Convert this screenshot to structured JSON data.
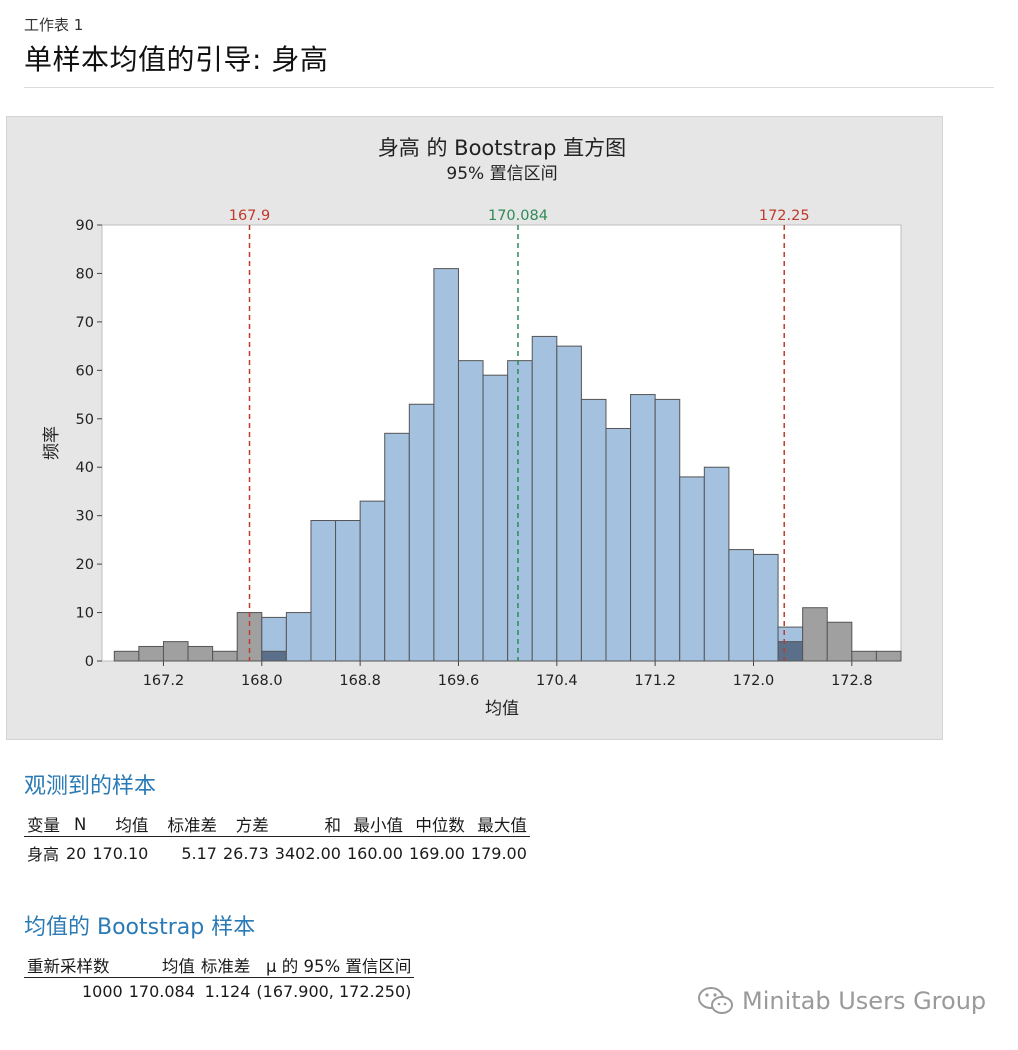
{
  "sheet_label": "工作表 1",
  "page_title": "单样本均值的引导: 身高",
  "chart_data": {
    "type": "bar",
    "title": "身高 的 Bootstrap 直方图",
    "subtitle": "95% 置信区间",
    "xlabel": "均值",
    "ylabel": "频率",
    "xlim": [
      166.7,
      173.2
    ],
    "ylim": [
      0,
      90
    ],
    "y_ticks": [
      0,
      10,
      20,
      30,
      40,
      50,
      60,
      70,
      80,
      90
    ],
    "x_ticks": [
      167.2,
      168.0,
      168.8,
      169.6,
      170.4,
      171.2,
      172.0,
      172.8
    ],
    "x_tick_labels": [
      "167.2",
      "168.0",
      "168.8",
      "169.6",
      "170.4",
      "171.2",
      "172.0",
      "172.8"
    ],
    "bin_width": 0.2,
    "bins": [
      {
        "x0": 166.8,
        "value": 2,
        "outside": 2
      },
      {
        "x0": 167.0,
        "value": 3,
        "outside": 3
      },
      {
        "x0": 167.2,
        "value": 4,
        "outside": 4
      },
      {
        "x0": 167.4,
        "value": 3,
        "outside": 3
      },
      {
        "x0": 167.6,
        "value": 2,
        "outside": 2
      },
      {
        "x0": 167.8,
        "value": 10,
        "outside": 10
      },
      {
        "x0": 168.0,
        "value": 9,
        "outside": 2
      },
      {
        "x0": 168.2,
        "value": 10,
        "outside": 0
      },
      {
        "x0": 168.4,
        "value": 29,
        "outside": 0
      },
      {
        "x0": 168.6,
        "value": 29,
        "outside": 0
      },
      {
        "x0": 168.8,
        "value": 33,
        "outside": 0
      },
      {
        "x0": 169.0,
        "value": 47,
        "outside": 0
      },
      {
        "x0": 169.2,
        "value": 53,
        "outside": 0
      },
      {
        "x0": 169.4,
        "value": 81,
        "outside": 0
      },
      {
        "x0": 169.6,
        "value": 62,
        "outside": 0
      },
      {
        "x0": 169.8,
        "value": 59,
        "outside": 0
      },
      {
        "x0": 170.0,
        "value": 62,
        "outside": 0
      },
      {
        "x0": 170.2,
        "value": 67,
        "outside": 0
      },
      {
        "x0": 170.4,
        "value": 65,
        "outside": 0
      },
      {
        "x0": 170.6,
        "value": 54,
        "outside": 0
      },
      {
        "x0": 170.8,
        "value": 48,
        "outside": 0
      },
      {
        "x0": 171.0,
        "value": 55,
        "outside": 0
      },
      {
        "x0": 171.2,
        "value": 54,
        "outside": 0
      },
      {
        "x0": 171.4,
        "value": 38,
        "outside": 0
      },
      {
        "x0": 171.6,
        "value": 40,
        "outside": 0
      },
      {
        "x0": 171.8,
        "value": 23,
        "outside": 0
      },
      {
        "x0": 172.0,
        "value": 22,
        "outside": 0
      },
      {
        "x0": 172.2,
        "value": 7,
        "outside": 4
      },
      {
        "x0": 172.4,
        "value": 11,
        "outside": 11
      },
      {
        "x0": 172.6,
        "value": 8,
        "outside": 8
      },
      {
        "x0": 172.8,
        "value": 2,
        "outside": 2
      },
      {
        "x0": 173.0,
        "value": 2,
        "outside": 2
      }
    ],
    "reference_lines": [
      {
        "value": 167.9,
        "label": "167.9",
        "color": "#c0392b"
      },
      {
        "value": 170.084,
        "label": "170.084",
        "color": "#2e8b57"
      },
      {
        "value": 172.25,
        "label": "172.25",
        "color": "#c0392b"
      }
    ],
    "colors": {
      "inside": "#a4c1df",
      "outside": "#a0a0a0",
      "overlap": "#5a6f8a",
      "edge": "#555555"
    }
  },
  "observed": {
    "title": "观测到的样本",
    "headers": [
      "变量",
      "N",
      "均值",
      "标准差",
      "方差",
      "和",
      "最小值",
      "中位数",
      "最大值"
    ],
    "rows": [
      [
        "身高",
        "20",
        "170.10",
        "5.17",
        "26.73",
        "3402.00",
        "160.00",
        "169.00",
        "179.00"
      ]
    ]
  },
  "bootstrap": {
    "title": "均值的 Bootstrap 样本",
    "headers": [
      "重新采样数",
      "均值",
      "标准差",
      "μ 的 95% 置信区间"
    ],
    "rows": [
      [
        "1000",
        "170.084",
        "1.124",
        "(167.900, 172.250)"
      ]
    ]
  },
  "watermark": "Minitab Users Group"
}
